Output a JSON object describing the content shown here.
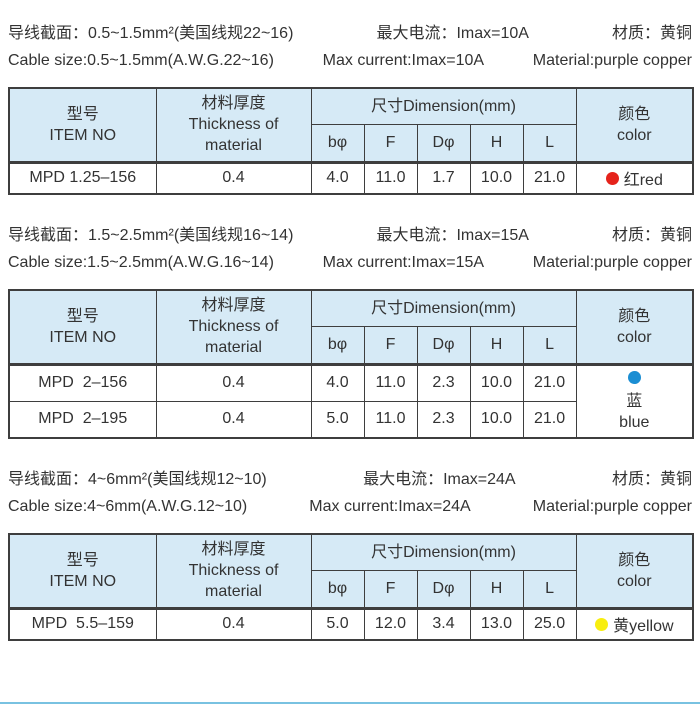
{
  "colors": {
    "header_bg": "#d6eaf6",
    "table_border": "#3e3e3e",
    "text": "#333333",
    "red_dot": "#e5231b",
    "blue_dot": "#1b8ed3",
    "yellow_dot": "#f8ee0f",
    "bottom_rule": "#79c2e1"
  },
  "table_header": {
    "item_no_zh": "型号",
    "item_no_en": "ITEM NO",
    "thickness_zh": "材料厚度",
    "thickness_en": "Thickness of material",
    "dimension_title": "尺寸Dimension(mm)",
    "dims": [
      "bφ",
      "F",
      "Dφ",
      "H",
      "L"
    ],
    "color_zh": "颜色",
    "color_en": "color"
  },
  "sections": [
    {
      "spec_zh": {
        "size": "导线截面：0.5~1.5mm²(美国线规22~16)",
        "current": "最大电流：Imax=10A",
        "material": "材质：黄铜"
      },
      "spec_en": {
        "size": "Cable size:0.5~1.5mm(A.W.G.22~16)",
        "current": "Max current:Imax=10A",
        "material": "Material:purple copper"
      },
      "rows": [
        {
          "item_no": "MPD 1.25–156",
          "thickness": "0.4",
          "dims": [
            "4.0",
            "11.0",
            "1.7",
            "10.0",
            "21.0"
          ]
        }
      ],
      "color": {
        "dot": "#e5231b",
        "label": "红red"
      }
    },
    {
      "spec_zh": {
        "size": "导线截面：1.5~2.5mm²(美国线规16~14)",
        "current": "最大电流：Imax=15A",
        "material": "材质：黄铜"
      },
      "spec_en": {
        "size": "Cable size:1.5~2.5mm(A.W.G.16~14)",
        "current": "Max current:Imax=15A",
        "material": "Material:purple copper"
      },
      "rows": [
        {
          "item_no": "MPD  2–156",
          "thickness": "0.4",
          "dims": [
            "4.0",
            "11.0",
            "2.3",
            "10.0",
            "21.0"
          ]
        },
        {
          "item_no": "MPD  2–195",
          "thickness": "0.4",
          "dims": [
            "5.0",
            "11.0",
            "2.3",
            "10.0",
            "21.0"
          ]
        }
      ],
      "color": {
        "dot": "#1b8ed3",
        "line1": "蓝",
        "line2": "blue"
      }
    },
    {
      "spec_zh": {
        "size": "导线截面：4~6mm²(美国线规12~10)",
        "current": "最大电流：Imax=24A",
        "material": "材质：黄铜"
      },
      "spec_en": {
        "size": "Cable size:4~6mm(A.W.G.12~10)",
        "current": "Max current:Imax=24A",
        "material": "Material:purple copper"
      },
      "rows": [
        {
          "item_no": "MPD  5.5–159",
          "thickness": "0.4",
          "dims": [
            "5.0",
            "12.0",
            "3.4",
            "13.0",
            "25.0"
          ]
        }
      ],
      "color": {
        "dot": "#f8ee0f",
        "label": "黄yellow"
      }
    }
  ]
}
